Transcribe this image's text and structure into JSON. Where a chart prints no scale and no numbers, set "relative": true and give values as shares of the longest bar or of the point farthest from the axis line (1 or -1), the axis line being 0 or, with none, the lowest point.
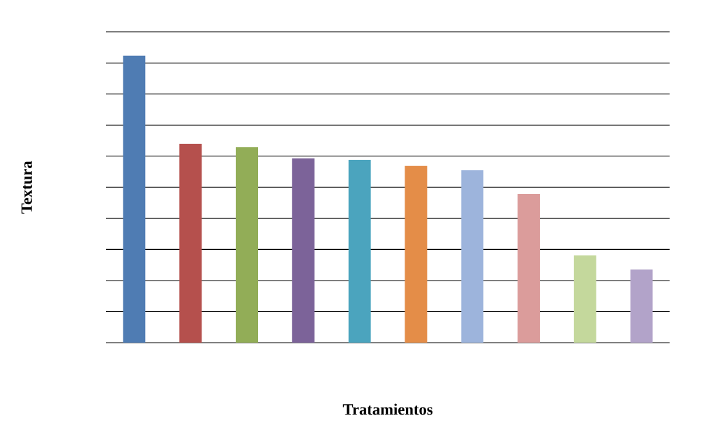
{
  "chart_data": {
    "type": "bar",
    "relative": true,
    "grid": "y",
    "xlabel": "Tratamientos",
    "ylabel": "Textura",
    "categories": [
      null,
      null,
      null,
      null,
      null,
      null,
      null,
      null,
      null,
      null
    ],
    "values": [
      1,
      0.693,
      0.681,
      0.642,
      0.637,
      0.616,
      0.601,
      0.518,
      0.304,
      0.255
    ],
    "colors": [
      "#4f7cb3",
      "#b5504d",
      "#92ad57",
      "#7c6399",
      "#4ba4be",
      "#e48d48",
      "#9db4dc",
      "#db9c9b",
      "#c4d89c",
      "#b2a3c9"
    ]
  }
}
